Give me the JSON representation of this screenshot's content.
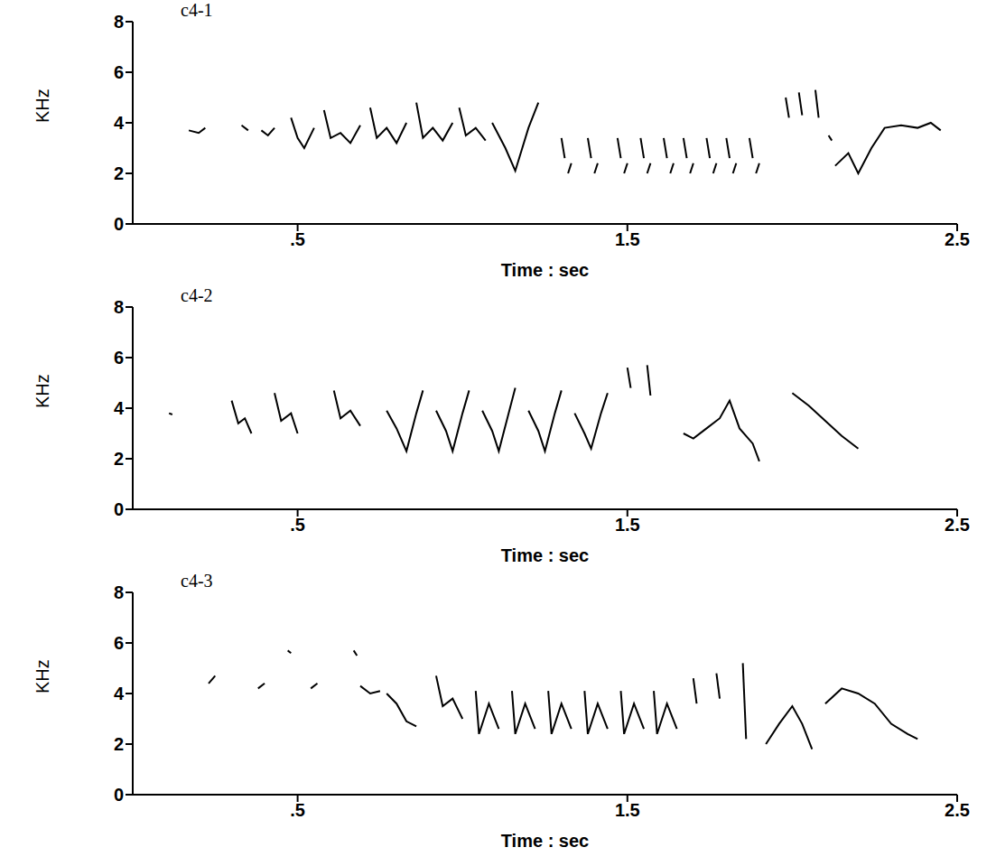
{
  "chart_data": [
    {
      "type": "line",
      "title": "c4-1",
      "x_label": "Time : sec",
      "y_label": "KHz",
      "color": "#000000",
      "xlim": [
        0,
        2.5
      ],
      "xticks": [
        {
          "value": 0.5,
          "label": ".5"
        },
        {
          "value": 1.5,
          "label": "1.5"
        },
        {
          "value": 2.5,
          "label": "2.5"
        }
      ],
      "ylim": [
        0,
        8
      ],
      "yticks": [
        0,
        2,
        4,
        6,
        8
      ],
      "series": [
        {
          "x": [
            0.17,
            0.2,
            0.22
          ],
          "values": [
            3.7,
            3.6,
            3.8
          ]
        },
        {
          "x": [
            0.33,
            0.35
          ],
          "values": [
            3.9,
            3.7
          ]
        },
        {
          "x": [
            0.39,
            0.41,
            0.43
          ],
          "values": [
            3.7,
            3.5,
            3.8
          ]
        },
        {
          "x": [
            0.48,
            0.5,
            0.52,
            0.55
          ],
          "values": [
            4.2,
            3.4,
            3.0,
            3.8
          ]
        },
        {
          "x": [
            0.58,
            0.6,
            0.63,
            0.66,
            0.69
          ],
          "values": [
            4.5,
            3.4,
            3.6,
            3.2,
            3.9
          ]
        },
        {
          "x": [
            0.72,
            0.74,
            0.77,
            0.8,
            0.83
          ],
          "values": [
            4.6,
            3.4,
            3.8,
            3.2,
            4.0
          ]
        },
        {
          "x": [
            0.86,
            0.88,
            0.91,
            0.94,
            0.97
          ],
          "values": [
            4.8,
            3.4,
            3.8,
            3.3,
            4.0
          ]
        },
        {
          "x": [
            0.99,
            1.01,
            1.04,
            1.07
          ],
          "values": [
            4.6,
            3.5,
            3.8,
            3.3
          ]
        },
        {
          "x": [
            1.09,
            1.13,
            1.16,
            1.2,
            1.23
          ],
          "values": [
            4.0,
            3.0,
            2.1,
            3.8,
            4.8
          ]
        },
        {
          "x": [
            1.3,
            1.31
          ],
          "values": [
            3.4,
            2.6
          ]
        },
        {
          "x": [
            1.32,
            1.33
          ],
          "values": [
            2.0,
            2.4
          ]
        },
        {
          "x": [
            1.38,
            1.39
          ],
          "values": [
            3.4,
            2.6
          ]
        },
        {
          "x": [
            1.4,
            1.41
          ],
          "values": [
            2.0,
            2.4
          ]
        },
        {
          "x": [
            1.47,
            1.48
          ],
          "values": [
            3.4,
            2.6
          ]
        },
        {
          "x": [
            1.49,
            1.5
          ],
          "values": [
            2.0,
            2.4
          ]
        },
        {
          "x": [
            1.54,
            1.55
          ],
          "values": [
            3.4,
            2.6
          ]
        },
        {
          "x": [
            1.56,
            1.57
          ],
          "values": [
            2.0,
            2.4
          ]
        },
        {
          "x": [
            1.61,
            1.62
          ],
          "values": [
            3.4,
            2.6
          ]
        },
        {
          "x": [
            1.63,
            1.64
          ],
          "values": [
            2.0,
            2.4
          ]
        },
        {
          "x": [
            1.67,
            1.68
          ],
          "values": [
            3.4,
            2.6
          ]
        },
        {
          "x": [
            1.69,
            1.7
          ],
          "values": [
            2.0,
            2.4
          ]
        },
        {
          "x": [
            1.74,
            1.75
          ],
          "values": [
            3.4,
            2.6
          ]
        },
        {
          "x": [
            1.76,
            1.77
          ],
          "values": [
            2.0,
            2.4
          ]
        },
        {
          "x": [
            1.8,
            1.81
          ],
          "values": [
            3.4,
            2.6
          ]
        },
        {
          "x": [
            1.82,
            1.83
          ],
          "values": [
            2.0,
            2.4
          ]
        },
        {
          "x": [
            1.87,
            1.88
          ],
          "values": [
            3.4,
            2.6
          ]
        },
        {
          "x": [
            1.89,
            1.9
          ],
          "values": [
            2.0,
            2.4
          ]
        },
        {
          "x": [
            1.98,
            1.99
          ],
          "values": [
            5.0,
            4.2
          ]
        },
        {
          "x": [
            2.02,
            2.03
          ],
          "values": [
            5.2,
            4.3
          ]
        },
        {
          "x": [
            2.07,
            2.08
          ],
          "values": [
            5.3,
            4.2
          ]
        },
        {
          "x": [
            2.11,
            2.12
          ],
          "values": [
            3.5,
            3.3
          ]
        },
        {
          "x": [
            2.13,
            2.17,
            2.2,
            2.24,
            2.28,
            2.33,
            2.38,
            2.42,
            2.45
          ],
          "values": [
            2.3,
            2.8,
            2.0,
            3.0,
            3.8,
            3.9,
            3.8,
            4.0,
            3.7
          ]
        }
      ]
    },
    {
      "type": "line",
      "title": "c4-2",
      "x_label": "Time : sec",
      "y_label": "KHz",
      "color": "#000000",
      "xlim": [
        0,
        2.5
      ],
      "xticks": [
        {
          "value": 0.5,
          "label": ".5"
        },
        {
          "value": 1.5,
          "label": "1.5"
        },
        {
          "value": 2.5,
          "label": "2.5"
        }
      ],
      "ylim": [
        0,
        8
      ],
      "yticks": [
        0,
        2,
        4,
        6,
        8
      ],
      "series": [
        {
          "x": [
            0.11,
            0.12
          ],
          "values": [
            3.8,
            3.75
          ]
        },
        {
          "x": [
            0.3,
            0.32,
            0.34,
            0.36
          ],
          "values": [
            4.3,
            3.4,
            3.6,
            3.0
          ]
        },
        {
          "x": [
            0.43,
            0.45,
            0.48,
            0.5
          ],
          "values": [
            4.6,
            3.5,
            3.8,
            3.0
          ]
        },
        {
          "x": [
            0.61,
            0.63,
            0.66,
            0.69
          ],
          "values": [
            4.7,
            3.6,
            3.9,
            3.3
          ]
        },
        {
          "x": [
            0.77,
            0.8,
            0.83,
            0.86,
            0.88
          ],
          "values": [
            3.9,
            3.2,
            2.3,
            3.8,
            4.7
          ]
        },
        {
          "x": [
            0.92,
            0.95,
            0.97,
            1.0,
            1.02
          ],
          "values": [
            3.9,
            3.1,
            2.3,
            3.8,
            4.7
          ]
        },
        {
          "x": [
            1.06,
            1.09,
            1.11,
            1.14,
            1.16
          ],
          "values": [
            3.9,
            3.1,
            2.3,
            3.8,
            4.8
          ]
        },
        {
          "x": [
            1.2,
            1.23,
            1.25,
            1.28,
            1.3
          ],
          "values": [
            3.9,
            3.1,
            2.3,
            3.8,
            4.7
          ]
        },
        {
          "x": [
            1.34,
            1.37,
            1.39,
            1.42,
            1.44
          ],
          "values": [
            3.8,
            3.0,
            2.4,
            3.8,
            4.6
          ]
        },
        {
          "x": [
            1.5,
            1.51
          ],
          "values": [
            5.6,
            4.8
          ]
        },
        {
          "x": [
            1.56,
            1.57
          ],
          "values": [
            5.7,
            4.5
          ]
        },
        {
          "x": [
            1.67,
            1.7,
            1.74,
            1.78,
            1.81,
            1.84,
            1.88,
            1.9
          ],
          "values": [
            3.0,
            2.8,
            3.2,
            3.6,
            4.3,
            3.2,
            2.6,
            1.9
          ]
        },
        {
          "x": [
            2.0,
            2.05,
            2.1,
            2.15,
            2.2
          ],
          "values": [
            4.6,
            4.1,
            3.5,
            2.9,
            2.4
          ]
        }
      ]
    },
    {
      "type": "line",
      "title": "c4-3",
      "x_label": "Time : sec",
      "y_label": "KHz",
      "color": "#000000",
      "xlim": [
        0,
        2.5
      ],
      "xticks": [
        {
          "value": 0.5,
          "label": ".5"
        },
        {
          "value": 1.5,
          "label": "1.5"
        },
        {
          "value": 2.5,
          "label": "2.5"
        }
      ],
      "ylim": [
        0,
        8
      ],
      "yticks": [
        0,
        2,
        4,
        6,
        8
      ],
      "series": [
        {
          "x": [
            0.23,
            0.25
          ],
          "values": [
            4.4,
            4.7
          ]
        },
        {
          "x": [
            0.38,
            0.4
          ],
          "values": [
            4.2,
            4.4
          ]
        },
        {
          "x": [
            0.47,
            0.48
          ],
          "values": [
            5.7,
            5.6
          ]
        },
        {
          "x": [
            0.54,
            0.56
          ],
          "values": [
            4.2,
            4.4
          ]
        },
        {
          "x": [
            0.67,
            0.68
          ],
          "values": [
            5.7,
            5.5
          ]
        },
        {
          "x": [
            0.69,
            0.72,
            0.75
          ],
          "values": [
            4.3,
            4.0,
            4.1
          ]
        },
        {
          "x": [
            0.77,
            0.8,
            0.83,
            0.86
          ],
          "values": [
            4.0,
            3.6,
            2.9,
            2.7
          ]
        },
        {
          "x": [
            0.92,
            0.94,
            0.97,
            1.0
          ],
          "values": [
            4.7,
            3.5,
            3.8,
            3.0
          ]
        },
        {
          "x": [
            1.04,
            1.05,
            1.08,
            1.11
          ],
          "values": [
            4.1,
            2.4,
            3.6,
            2.6
          ]
        },
        {
          "x": [
            1.15,
            1.16,
            1.19,
            1.22
          ],
          "values": [
            4.1,
            2.4,
            3.6,
            2.6
          ]
        },
        {
          "x": [
            1.26,
            1.27,
            1.3,
            1.33
          ],
          "values": [
            4.1,
            2.4,
            3.6,
            2.6
          ]
        },
        {
          "x": [
            1.37,
            1.38,
            1.41,
            1.44
          ],
          "values": [
            4.1,
            2.4,
            3.6,
            2.6
          ]
        },
        {
          "x": [
            1.48,
            1.49,
            1.52,
            1.55
          ],
          "values": [
            4.1,
            2.4,
            3.6,
            2.6
          ]
        },
        {
          "x": [
            1.58,
            1.59,
            1.62,
            1.65
          ],
          "values": [
            4.1,
            2.4,
            3.6,
            2.6
          ]
        },
        {
          "x": [
            1.7,
            1.71
          ],
          "values": [
            4.6,
            3.6
          ]
        },
        {
          "x": [
            1.77,
            1.78
          ],
          "values": [
            4.8,
            3.8
          ]
        },
        {
          "x": [
            1.85,
            1.86
          ],
          "values": [
            5.2,
            2.2
          ]
        },
        {
          "x": [
            1.92,
            1.96,
            2.0,
            2.03,
            2.06
          ],
          "values": [
            2.0,
            2.8,
            3.5,
            2.8,
            1.8
          ]
        },
        {
          "x": [
            2.1,
            2.15,
            2.2,
            2.25,
            2.3,
            2.35,
            2.38
          ],
          "values": [
            3.6,
            4.2,
            4.0,
            3.6,
            2.8,
            2.4,
            2.2
          ]
        }
      ]
    }
  ]
}
